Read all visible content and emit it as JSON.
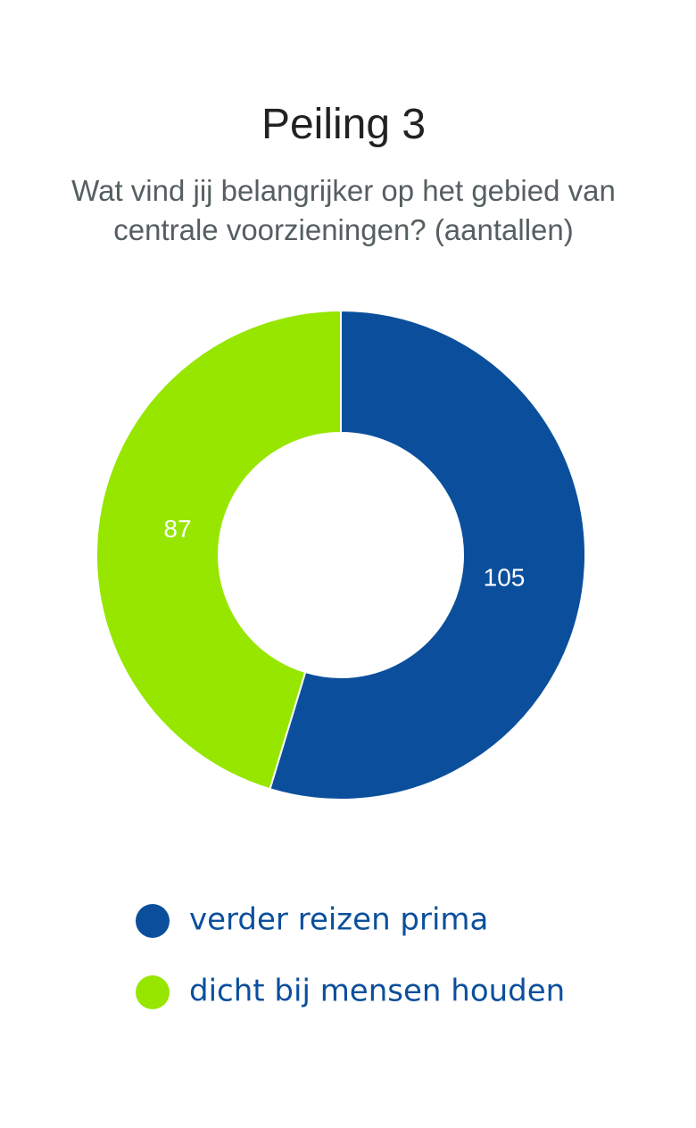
{
  "chart_data": {
    "type": "donut",
    "title": "Peiling 3",
    "subtitle": "Wat vind jij belangrijker op het gebied van centrale voorzieningen? (aantallen)",
    "categories": [
      "verder reizen prima",
      "dicht bij mensen houden"
    ],
    "values": [
      105,
      87
    ],
    "colors": [
      "#0b4f9c",
      "#96e600"
    ]
  }
}
